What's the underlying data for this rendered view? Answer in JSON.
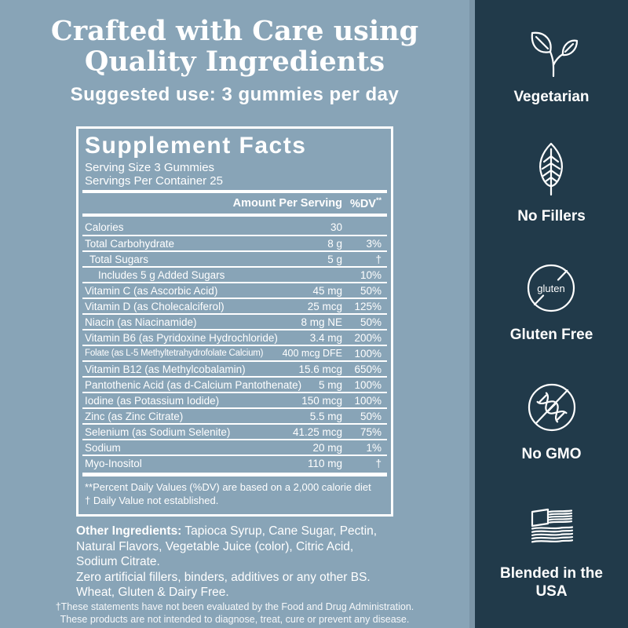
{
  "page": {
    "background_color": "#88A4B7",
    "sidebar_background_color": "#213A4A",
    "text_color": "#FFFFFF"
  },
  "header": {
    "title_line1": "Crafted with Care using",
    "title_line2": "Quality Ingredients",
    "suggested_use": "Suggested use: 3 gummies per day"
  },
  "panel": {
    "title": "Supplement Facts",
    "serving_size": "Serving Size 3 Gummies",
    "servings_per_container": "Servings Per Container 25",
    "columns": {
      "amount": "Amount Per Serving",
      "dv": "%DV",
      "dv_superscript": "**"
    },
    "rows": [
      {
        "label": "Calories",
        "amount": "30",
        "dv": ""
      },
      {
        "label": "Total Carbohydrate",
        "amount": "8 g",
        "dv": "3%"
      },
      {
        "label": "Total Sugars",
        "amount": "5 g",
        "dv": "†",
        "indent": 1
      },
      {
        "label": "Includes 5 g Added Sugars",
        "amount": "",
        "dv": "10%",
        "indent": 2
      },
      {
        "label": "Vitamin C (as Ascorbic Acid)",
        "amount": "45 mg",
        "dv": "50%"
      },
      {
        "label": "Vitamin D (as Cholecalciferol)",
        "amount": "25 mcg",
        "dv": "125%"
      },
      {
        "label": "Niacin (as Niacinamide)",
        "amount": "8 mg NE",
        "dv": "50%"
      },
      {
        "label": "Vitamin B6 (as Pyridoxine Hydrochloride)",
        "amount": "3.4 mg",
        "dv": "200%"
      },
      {
        "label": "Folate (as L-5 Methyltetrahydrofolate Calcium)",
        "amount": "400 mcg DFE",
        "dv": "100%",
        "condensed": true
      },
      {
        "label": "Vitamin B12 (as Methylcobalamin)",
        "amount": "15.6 mcg",
        "dv": "650%"
      },
      {
        "label": "Pantothenic Acid (as d-Calcium Pantothenate)",
        "amount": "5 mg",
        "dv": "100%"
      },
      {
        "label": "Iodine (as Potassium Iodide)",
        "amount": "150 mcg",
        "dv": "100%"
      },
      {
        "label": "Zinc (as Zinc Citrate)",
        "amount": "5.5 mg",
        "dv": "50%"
      },
      {
        "label": "Selenium (as Sodium Selenite)",
        "amount": "41.25 mcg",
        "dv": "75%"
      },
      {
        "label": "Sodium",
        "amount": "20 mg",
        "dv": "1%"
      },
      {
        "label": "Myo-Inositol",
        "amount": "110 mg",
        "dv": "†"
      }
    ],
    "footnote_line1": "**Percent Daily Values (%DV) are based on a 2,000 calorie diet",
    "footnote_line2": "† Daily Value not established."
  },
  "other_ingredients": {
    "label": "Other Ingredients:",
    "text": "Tapioca Syrup, Cane Sugar, Pectin, Natural Flavors, Vegetable Juice (color), Citric Acid, Sodium Citrate.",
    "line2": "Zero artificial fillers, binders, additives or any other BS.",
    "line3": "Wheat, Gluten & Dairy Free."
  },
  "disclaimer": {
    "line1": "†These statements have not been evaluated by the Food and Drug Administration.",
    "line2": "These products are not intended to diagnose, treat, cure or prevent any disease."
  },
  "sidebar": {
    "badges": [
      {
        "icon": "leaves-sprout-icon",
        "label": "Vegetarian"
      },
      {
        "icon": "leaf-veins-icon",
        "label": "No Fillers"
      },
      {
        "icon": "gluten-crossed-circle-icon",
        "icon_text": "gluten",
        "label": "Gluten Free"
      },
      {
        "icon": "dna-crossed-circle-icon",
        "label": "No GMO"
      },
      {
        "icon": "usa-flag-icon",
        "label": "Blended in the USA"
      }
    ]
  }
}
